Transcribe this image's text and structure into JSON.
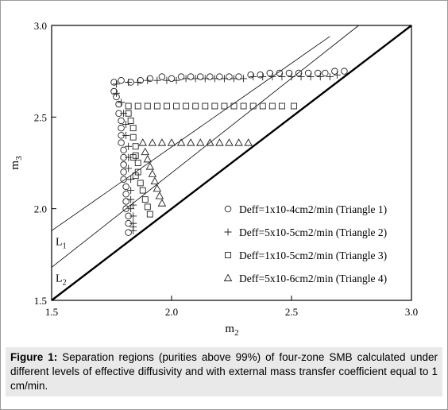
{
  "chart_data": {
    "type": "scatter",
    "xlabel": "m",
    "xlabel_sub": "2",
    "ylabel": "m",
    "ylabel_sub": "3",
    "xlim": [
      1.5,
      3.0
    ],
    "ylim": [
      1.5,
      3.0
    ],
    "xticks": [
      1.5,
      {
        "value": 2,
        "label": "2.0"
      },
      2.5,
      {
        "value": 3,
        "label": "3.0"
      }
    ],
    "yticks": [
      1.5,
      {
        "value": 2,
        "label": "2.0"
      },
      2.5,
      {
        "value": 3,
        "label": "3.0"
      }
    ],
    "reference_lines": [
      {
        "x": [
          1.5,
          3.0
        ],
        "y": [
          1.5,
          3.0
        ]
      },
      {
        "label": "L",
        "label_sub": "1",
        "x": [
          1.5,
          2.66
        ],
        "y": [
          1.88,
          2.94
        ]
      },
      {
        "label": "L",
        "label_sub": "2",
        "x": [
          1.5,
          2.78
        ],
        "y": [
          1.68,
          3.0
        ]
      }
    ],
    "series": [
      {
        "name": "Deff=1x10-4cm2/min (Triangle 1)",
        "marker": "circle",
        "x": [
          1.76,
          1.79,
          1.83,
          1.87,
          1.91,
          1.96,
          2.0,
          2.04,
          2.08,
          2.12,
          2.16,
          2.2,
          2.24,
          2.28,
          2.33,
          2.37,
          2.41,
          2.45,
          2.49,
          2.53,
          2.57,
          2.61,
          2.64,
          2.68,
          2.72,
          1.76,
          1.77,
          1.78,
          1.78,
          1.79,
          1.79,
          1.79,
          1.79,
          1.8,
          1.8,
          1.8,
          1.8,
          1.8,
          1.81,
          1.81,
          1.81,
          1.81,
          1.82,
          1.82,
          1.82
        ],
        "values": [
          2.69,
          2.7,
          2.69,
          2.7,
          2.71,
          2.72,
          2.71,
          2.72,
          2.72,
          2.72,
          2.72,
          2.72,
          2.72,
          2.72,
          2.73,
          2.73,
          2.74,
          2.74,
          2.74,
          2.74,
          2.74,
          2.74,
          2.74,
          2.75,
          2.75,
          2.64,
          2.61,
          2.57,
          2.52,
          2.48,
          2.44,
          2.4,
          2.36,
          2.32,
          2.28,
          2.24,
          2.2,
          2.16,
          2.12,
          2.08,
          2.04,
          2.0,
          1.96,
          1.92,
          1.87
        ]
      },
      {
        "name": "Deff=5x10-5cm2/min (Triangle 2)",
        "marker": "plus",
        "x": [
          1.77,
          1.82,
          1.86,
          1.9,
          1.94,
          1.98,
          2.02,
          2.06,
          2.1,
          2.14,
          2.18,
          2.22,
          2.26,
          2.3,
          2.34,
          2.38,
          2.42,
          2.46,
          2.5,
          2.54,
          2.58,
          2.62,
          2.66,
          2.69,
          1.77,
          1.79,
          1.8,
          1.81,
          1.81,
          1.82,
          1.82,
          1.82,
          1.83,
          1.83,
          1.83,
          1.83,
          1.84,
          1.84,
          1.84,
          1.84,
          1.84
        ],
        "values": [
          2.68,
          2.69,
          2.69,
          2.7,
          2.7,
          2.7,
          2.7,
          2.71,
          2.71,
          2.71,
          2.71,
          2.71,
          2.71,
          2.71,
          2.72,
          2.72,
          2.72,
          2.72,
          2.72,
          2.72,
          2.72,
          2.72,
          2.72,
          2.73,
          2.63,
          2.58,
          2.52,
          2.46,
          2.4,
          2.34,
          2.28,
          2.22,
          2.16,
          2.1,
          2.05,
          2.0,
          1.96,
          1.92,
          1.88,
          2.02,
          1.9
        ]
      },
      {
        "name": "Deff=1x10-5cm2/min (Triangle 3)",
        "marker": "square",
        "x": [
          1.82,
          1.86,
          1.9,
          1.94,
          1.98,
          2.02,
          2.06,
          2.1,
          2.14,
          2.18,
          2.22,
          2.26,
          2.3,
          2.34,
          2.38,
          2.42,
          2.46,
          2.51,
          1.82,
          1.83,
          1.84,
          1.84,
          1.85,
          1.85,
          1.86,
          1.86,
          1.87,
          1.88,
          1.89,
          1.9,
          1.91,
          1.84,
          1.85
        ],
        "values": [
          2.56,
          2.56,
          2.56,
          2.56,
          2.56,
          2.56,
          2.56,
          2.56,
          2.56,
          2.56,
          2.56,
          2.56,
          2.56,
          2.56,
          2.56,
          2.56,
          2.56,
          2.56,
          2.52,
          2.48,
          2.44,
          2.39,
          2.34,
          2.29,
          2.25,
          2.2,
          2.14,
          2.1,
          2.05,
          2.01,
          1.97,
          2.28,
          2.18
        ]
      },
      {
        "name": "Deff=5x10-6cm2/min (Triangle 4)",
        "marker": "triangle",
        "x": [
          1.88,
          1.92,
          1.96,
          2.0,
          2.04,
          2.08,
          2.12,
          2.16,
          2.2,
          2.24,
          2.28,
          2.32,
          1.89,
          1.9,
          1.91,
          1.92,
          1.93,
          1.94,
          1.95,
          1.96
        ],
        "values": [
          2.36,
          2.36,
          2.36,
          2.36,
          2.36,
          2.36,
          2.36,
          2.36,
          2.36,
          2.36,
          2.36,
          2.36,
          2.31,
          2.27,
          2.23,
          2.19,
          2.15,
          2.11,
          2.07,
          2.03
        ]
      }
    ]
  },
  "caption": {
    "label": "Figure 1:",
    "text": "Separation regions (purities above 99%) of four-zone SMB calculated under different levels of effective diffusivity and with external mass transfer coefficient equal to 1 cm/min."
  }
}
